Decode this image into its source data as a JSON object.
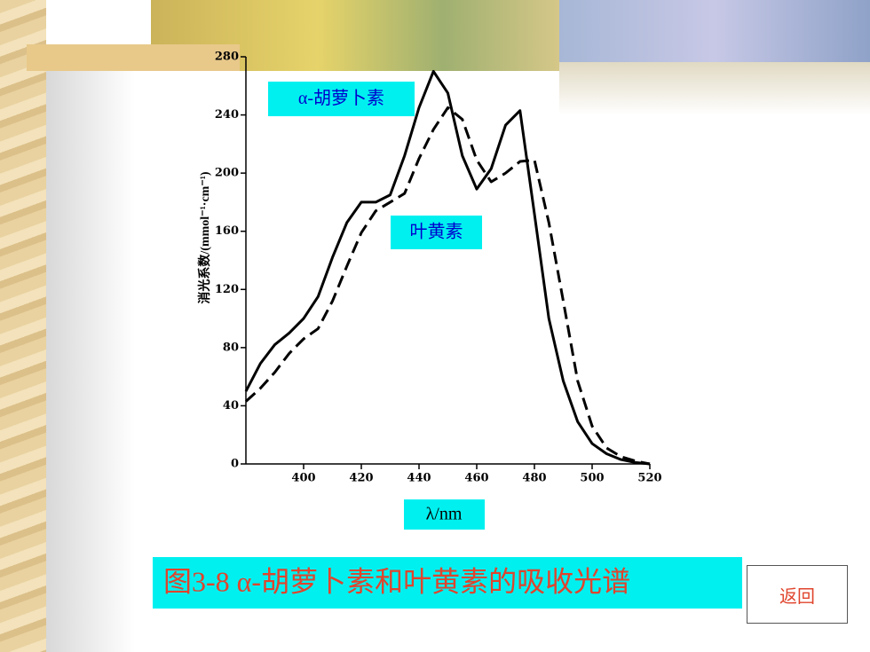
{
  "chart_data": {
    "type": "line",
    "title": "图3-8 α-胡萝卜素和叶黄素的吸收光谱",
    "x_label": "λ/nm",
    "y_label": "消光系数/(mmol⁻¹·cm⁻¹)",
    "x": [
      380,
      385,
      390,
      395,
      400,
      405,
      410,
      415,
      420,
      425,
      430,
      435,
      440,
      445,
      450,
      455,
      460,
      465,
      470,
      475,
      480,
      485,
      490,
      495,
      500,
      505,
      510,
      515,
      520
    ],
    "series": [
      {
        "name": "α-胡萝卜素",
        "color": "#000000",
        "line_style": "solid",
        "values": [
          50,
          69,
          82,
          90,
          100,
          115,
          142,
          166,
          180,
          180,
          185,
          212,
          245,
          270,
          255,
          212,
          189,
          203,
          233,
          243,
          172,
          100,
          57,
          29,
          14,
          7,
          3,
          1,
          0
        ]
      },
      {
        "name": "叶黄素",
        "color": "#000000",
        "line_style": "dashed",
        "values": [
          43,
          52,
          63,
          76,
          86,
          93,
          112,
          136,
          159,
          174,
          180,
          186,
          210,
          230,
          245,
          237,
          209,
          194,
          200,
          208,
          209,
          166,
          112,
          57,
          26,
          11,
          5,
          2,
          0
        ]
      }
    ],
    "xlim": [
      380,
      520
    ],
    "xticks": [
      400,
      420,
      440,
      460,
      480,
      500,
      520
    ],
    "ylim": [
      0,
      280
    ],
    "yticks": [
      0,
      40,
      80,
      120,
      160,
      200,
      240,
      280
    ],
    "grid": false
  },
  "back_button": "返回"
}
